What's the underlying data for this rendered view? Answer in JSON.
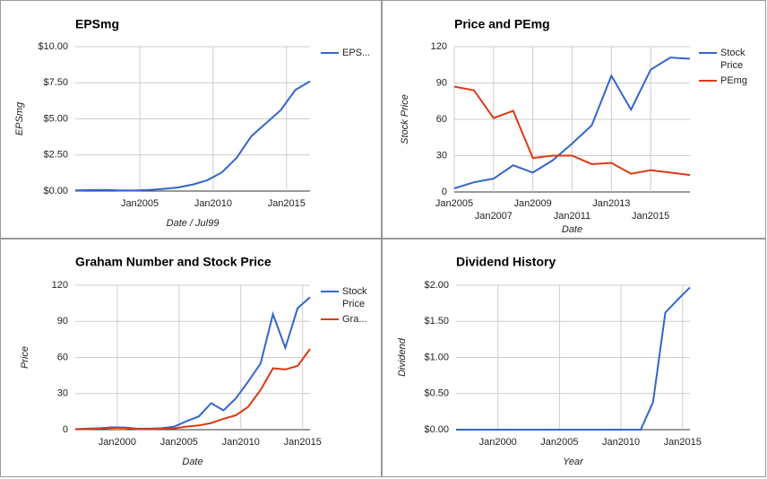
{
  "chart_data": [
    {
      "type": "line",
      "title": "EPSmg",
      "x_label": "Date / Jul99",
      "y_label": "EPSmg",
      "x": [
        2000.6,
        2001.6,
        2002.6,
        2003.6,
        2004.6,
        2005.6,
        2006.6,
        2007.6,
        2008.6,
        2009.6,
        2010.6,
        2011.6,
        2012.6,
        2013.6,
        2014.6,
        2015.6,
        2016.6
      ],
      "series": [
        {
          "name": "EPS...",
          "color": "#3366cc",
          "values": [
            0.05,
            0.07,
            0.08,
            0.05,
            0.04,
            0.08,
            0.15,
            0.25,
            0.45,
            0.75,
            1.3,
            2.3,
            3.8,
            4.7,
            5.6,
            7.0,
            7.6
          ]
        }
      ],
      "xlim": [
        2000.6,
        2016.6
      ],
      "xticks": [
        {
          "value": 2005,
          "label": "Jan2005"
        },
        {
          "value": 2010,
          "label": "Jan2010"
        },
        {
          "value": 2015,
          "label": "Jan2015"
        }
      ],
      "ylim": [
        0,
        10
      ],
      "yticks": [
        {
          "value": 0,
          "label": "$0.00"
        },
        {
          "value": 2.5,
          "label": "$2.50"
        },
        {
          "value": 5,
          "label": "$5.00"
        },
        {
          "value": 7.5,
          "label": "$7.50"
        },
        {
          "value": 10,
          "label": "$10.00"
        }
      ],
      "grid": true,
      "legend": "right"
    },
    {
      "type": "line",
      "title": "Price and PEmg",
      "x_label": "Date",
      "y_label": "Stock Price",
      "x": [
        2005,
        2006,
        2007,
        2008,
        2009,
        2010,
        2011,
        2012,
        2013,
        2014,
        2015,
        2016,
        2017
      ],
      "series": [
        {
          "name": "Stock Price",
          "color": "#3366cc",
          "values": [
            3,
            8,
            11,
            22,
            16,
            26,
            40,
            55,
            96,
            68,
            101,
            111,
            110
          ]
        },
        {
          "name": "PEmg",
          "color": "#dc3912",
          "values": [
            87,
            84,
            61,
            67,
            28,
            30,
            30,
            23,
            24,
            15,
            18,
            16,
            14
          ]
        }
      ],
      "xlim": [
        2005,
        2017
      ],
      "xticks": [
        {
          "value": 2005,
          "label": "Jan2005"
        },
        {
          "value": 2007,
          "label": "Jan2007"
        },
        {
          "value": 2009,
          "label": "Jan2009"
        },
        {
          "value": 2011,
          "label": "Jan2011"
        },
        {
          "value": 2013,
          "label": "Jan2013"
        },
        {
          "value": 2015,
          "label": "Jan2015"
        }
      ],
      "ylim": [
        0,
        120
      ],
      "yticks": [
        0,
        30,
        60,
        90,
        120
      ],
      "grid": true,
      "legend": "right"
    },
    {
      "type": "line",
      "title": "Graham Number and Stock Price",
      "x_label": "Date",
      "y_label": "Price",
      "x": [
        1996.6,
        1997.6,
        1998.6,
        1999.6,
        2000.6,
        2001.6,
        2002.6,
        2003.6,
        2004.6,
        2005.6,
        2006.6,
        2007.6,
        2008.6,
        2009.6,
        2010.6,
        2011.6,
        2012.6,
        2013.6,
        2014.6,
        2015.6
      ],
      "series": [
        {
          "name": "Stock Price",
          "color": "#3366cc",
          "values": [
            0.5,
            0.8,
            1.2,
            2,
            1.8,
            0.8,
            0.8,
            1.2,
            2.5,
            7,
            11,
            22,
            16,
            26,
            40,
            55,
            96,
            68,
            101,
            110
          ]
        },
        {
          "name": "Gra...",
          "color": "#dc3912",
          "values": [
            0.3,
            0.5,
            0.8,
            1.5,
            1.5,
            0.5,
            0.5,
            0.7,
            1,
            2.5,
            3.5,
            5.5,
            9,
            12,
            19,
            33,
            51,
            50,
            53,
            67
          ]
        }
      ],
      "xlim": [
        1996.6,
        2015.6
      ],
      "xticks": [
        {
          "value": 2000,
          "label": "Jan2000"
        },
        {
          "value": 2005,
          "label": "Jan2005"
        },
        {
          "value": 2010,
          "label": "Jan2010"
        },
        {
          "value": 2015,
          "label": "Jan2015"
        }
      ],
      "ylim": [
        0,
        120
      ],
      "yticks": [
        0,
        30,
        60,
        90,
        120
      ],
      "grid": true,
      "legend": "right"
    },
    {
      "type": "line",
      "title": "Dividend History",
      "x_label": "Year",
      "y_label": "Dividend",
      "x": [
        1996.6,
        1997.6,
        1998.6,
        1999.6,
        2000.6,
        2001.6,
        2002.6,
        2003.6,
        2004.6,
        2005.6,
        2006.6,
        2007.6,
        2008.6,
        2009.6,
        2010.6,
        2011.6,
        2012.6,
        2013.6,
        2014.6,
        2015.6
      ],
      "values": [
        0,
        0,
        0,
        0,
        0,
        0,
        0,
        0,
        0,
        0,
        0,
        0,
        0,
        0,
        0,
        0,
        0.38,
        1.62,
        1.8,
        1.97
      ],
      "color": "#3366cc",
      "xlim": [
        1996.6,
        2015.6
      ],
      "xticks": [
        {
          "value": 2000,
          "label": "Jan2000"
        },
        {
          "value": 2005,
          "label": "Jan2005"
        },
        {
          "value": 2010,
          "label": "Jan2010"
        },
        {
          "value": 2015,
          "label": "Jan2015"
        }
      ],
      "ylim": [
        0,
        2
      ],
      "yticks": [
        {
          "value": 0,
          "label": "$0.00"
        },
        {
          "value": 0.5,
          "label": "$0.50"
        },
        {
          "value": 1,
          "label": "$1.00"
        },
        {
          "value": 1.5,
          "label": "$1.50"
        },
        {
          "value": 2,
          "label": "$2.00"
        }
      ],
      "grid": true
    }
  ]
}
